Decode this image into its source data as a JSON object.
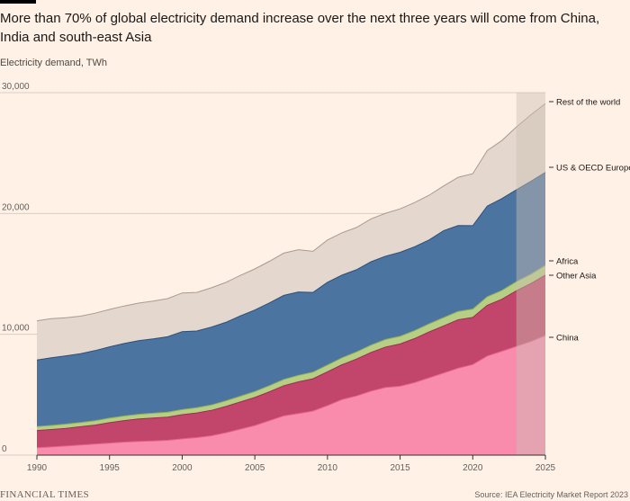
{
  "title": "More than 70% of global electricity demand increase over the next three years will come from China, India and south-east Asia",
  "subtitle": "Electricity demand, TWh",
  "brand": "FINANCIAL TIMES",
  "source": "Source: IEA Electricity Market Report 2023",
  "colors": {
    "background": "#FFF1E5",
    "grid": "#d9cdc2",
    "forecast_shade": "#cbbfb4"
  },
  "chart_data": {
    "type": "area",
    "stacked": true,
    "x": [
      1990,
      1991,
      1992,
      1993,
      1994,
      1995,
      1996,
      1997,
      1998,
      1999,
      2000,
      2001,
      2002,
      2003,
      2004,
      2005,
      2006,
      2007,
      2008,
      2009,
      2010,
      2011,
      2012,
      2013,
      2014,
      2015,
      2016,
      2017,
      2018,
      2019,
      2020,
      2021,
      2022,
      2023,
      2024,
      2025
    ],
    "xlim": [
      1990,
      2025
    ],
    "ylim": [
      0,
      30000
    ],
    "x_ticks": [
      "1990",
      "1995",
      "2000",
      "2005",
      "2010",
      "2015",
      "2020",
      "2025"
    ],
    "y_ticks": [
      "0",
      "10,000",
      "20,000",
      "30,000"
    ],
    "forecast_start": 2023,
    "grid": "horizontal",
    "legend": "right-side labels",
    "series": [
      {
        "name": "China",
        "color": "#F98BAD",
        "values": [
          620,
          680,
          750,
          840,
          920,
          1000,
          1080,
          1130,
          1170,
          1230,
          1350,
          1450,
          1600,
          1850,
          2150,
          2450,
          2850,
          3250,
          3450,
          3650,
          4100,
          4600,
          4900,
          5300,
          5600,
          5700,
          6000,
          6400,
          6800,
          7200,
          7500,
          8200,
          8600,
          9000,
          9400,
          9900
        ]
      },
      {
        "name": "Other Asia",
        "color": "#C2456B",
        "values": [
          1420,
          1440,
          1470,
          1510,
          1570,
          1690,
          1780,
          1860,
          1900,
          1910,
          2000,
          2040,
          2100,
          2180,
          2250,
          2320,
          2390,
          2500,
          2620,
          2670,
          2800,
          2880,
          3050,
          3200,
          3350,
          3500,
          3650,
          3800,
          3900,
          4000,
          3900,
          4200,
          4300,
          4600,
          4800,
          5000
        ]
      },
      {
        "name": "Africa",
        "color": "#B7CF84",
        "values": [
          330,
          340,
          345,
          350,
          360,
          370,
          380,
          390,
          400,
          410,
          420,
          430,
          445,
          460,
          475,
          490,
          505,
          520,
          535,
          545,
          560,
          575,
          590,
          605,
          620,
          635,
          650,
          665,
          680,
          695,
          690,
          710,
          730,
          750,
          770,
          800
        ]
      },
      {
        "name": "US & OECD Europe",
        "color": "#4C74A0",
        "values": [
          5500,
          5600,
          5650,
          5700,
          5800,
          5900,
          6000,
          6100,
          6150,
          6250,
          6450,
          6350,
          6450,
          6500,
          6650,
          6750,
          6850,
          6950,
          6900,
          6600,
          6850,
          6850,
          6800,
          6900,
          6900,
          6950,
          6950,
          6950,
          7200,
          7100,
          6900,
          7500,
          7600,
          7600,
          7700,
          7700
        ]
      },
      {
        "name": "Rest of the world",
        "color": "#E4D7CD",
        "values": [
          3250,
          3230,
          3150,
          3100,
          3100,
          3100,
          3100,
          3100,
          3130,
          3150,
          3200,
          3200,
          3250,
          3300,
          3350,
          3400,
          3450,
          3500,
          3500,
          3400,
          3500,
          3500,
          3500,
          3550,
          3550,
          3600,
          3650,
          3700,
          3700,
          4000,
          4300,
          4600,
          4800,
          5200,
          5500,
          5700
        ]
      }
    ]
  }
}
